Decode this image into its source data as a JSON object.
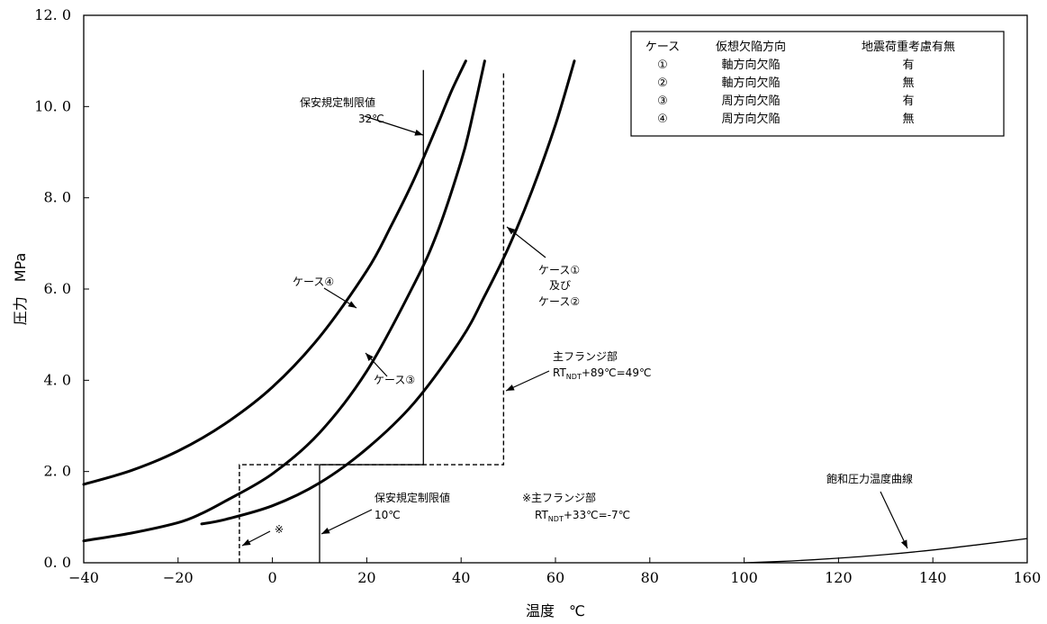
{
  "chart_data": {
    "type": "line",
    "xlabel": "温度　℃",
    "ylabel": "圧力　MPa",
    "xlim": [
      -40,
      160
    ],
    "ylim": [
      0,
      12
    ],
    "xticks": [
      -40,
      -20,
      0,
      20,
      40,
      60,
      80,
      100,
      120,
      140,
      160
    ],
    "xtick_labels": [
      "−40",
      "−20",
      "0",
      "20",
      "40",
      "60",
      "80",
      "100",
      "120",
      "140",
      "160"
    ],
    "yticks": [
      0,
      2,
      4,
      6,
      8,
      10,
      12
    ],
    "ytick_labels": [
      "0. 0",
      "2. 0",
      "4. 0",
      "6. 0",
      "8. 0",
      "10. 0",
      "12. 0"
    ],
    "grid": false,
    "series": [
      {
        "id": "case4",
        "style": "solid-thick",
        "x": [
          -40,
          -30,
          -20,
          -10,
          0,
          10,
          20,
          25,
          30,
          35,
          38,
          41
        ],
        "y": [
          1.72,
          2.02,
          2.45,
          3.05,
          3.85,
          4.95,
          6.4,
          7.35,
          8.4,
          9.6,
          10.35,
          11.0
        ]
      },
      {
        "id": "case3",
        "style": "solid-thick",
        "x": [
          -40,
          -30,
          -20,
          -15,
          -10,
          0,
          10,
          20,
          30,
          35,
          40,
          42,
          45
        ],
        "y": [
          0.48,
          0.65,
          0.88,
          1.08,
          1.35,
          1.95,
          2.85,
          4.2,
          6.1,
          7.25,
          8.8,
          9.6,
          11.0
        ]
      },
      {
        "id": "case1_2",
        "style": "solid-thick",
        "x": [
          -15,
          -10,
          0,
          10,
          20,
          30,
          40,
          45,
          50,
          55,
          60,
          64
        ],
        "y": [
          0.85,
          0.95,
          1.25,
          1.75,
          2.5,
          3.5,
          4.9,
          5.85,
          6.9,
          8.15,
          9.6,
          11.0
        ]
      },
      {
        "id": "saturation",
        "style": "solid-thin",
        "x": [
          100,
          110,
          120,
          130,
          140,
          150,
          160
        ],
        "y": [
          0.0,
          0.04,
          0.1,
          0.18,
          0.28,
          0.4,
          0.53
        ]
      },
      {
        "id": "limit_32",
        "style": "solid-thin",
        "x": [
          10,
          10,
          32,
          32
        ],
        "y": [
          0,
          2.15,
          2.15,
          10.8
        ]
      },
      {
        "id": "flange",
        "style": "dashed",
        "x": [
          -7,
          -7,
          49,
          49
        ],
        "y": [
          0,
          2.15,
          2.15,
          10.75
        ]
      }
    ],
    "annotations": [
      {
        "lines": [
          "保安規定制限値",
          "32℃"
        ]
      },
      {
        "lines": [
          "ケース④"
        ]
      },
      {
        "lines": [
          "ケース③"
        ]
      },
      {
        "lines": [
          "ケース①",
          "及び",
          "ケース②"
        ]
      },
      {
        "lines": [
          "主フランジ部",
          "RT",
          "NDT",
          "+89℃=49℃"
        ]
      },
      {
        "lines": [
          "保安規定制限値",
          "10℃"
        ]
      },
      {
        "lines": [
          "※主フランジ部",
          "RT",
          "NDT",
          "+33℃=-7℃"
        ]
      },
      {
        "lines": [
          "※"
        ]
      },
      {
        "lines": [
          "飽和圧力温度曲線"
        ]
      }
    ],
    "legend": {
      "position": "top-right",
      "headers": [
        "ケース",
        "仮想欠陥方向",
        "地震荷重考慮有無"
      ],
      "rows": [
        [
          "①",
          "軸方向欠陥",
          "有"
        ],
        [
          "②",
          "軸方向欠陥",
          "無"
        ],
        [
          "③",
          "周方向欠陥",
          "有"
        ],
        [
          "④",
          "周方向欠陥",
          "無"
        ]
      ]
    }
  }
}
